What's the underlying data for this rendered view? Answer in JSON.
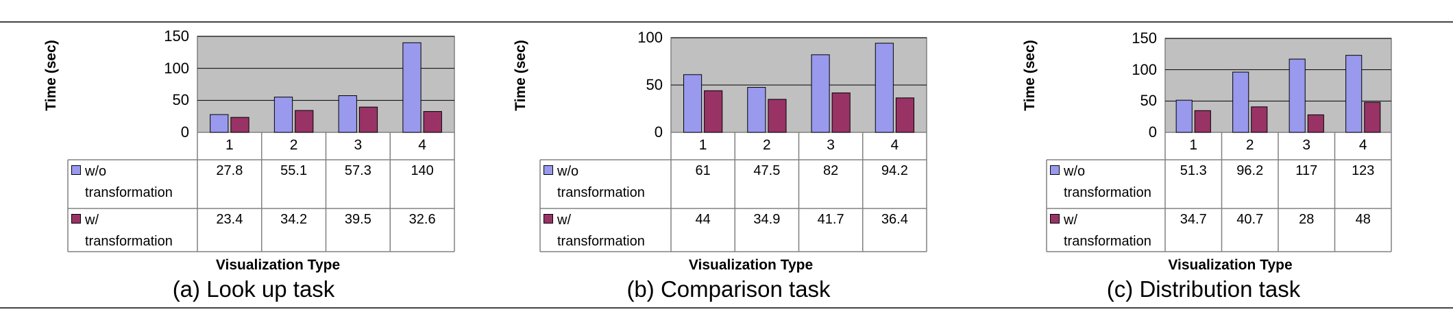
{
  "colors": {
    "series1": "#9999ee",
    "series2": "#993366",
    "plot_bg": "#c0c0c0",
    "grid": "#000000"
  },
  "chart_data": [
    {
      "type": "bar",
      "caption": "(a) Look up task",
      "ylabel": "Time (sec)",
      "xlabel": "Visualization Type",
      "ylim": [
        0,
        150
      ],
      "yticks": [
        "0",
        "50",
        "100",
        "150"
      ],
      "categories": [
        "1",
        "2",
        "3",
        "4"
      ],
      "series": [
        {
          "legend_line1": "w/o",
          "legend_line2": "transformation",
          "values": [
            27.8,
            55.1,
            57.3,
            140
          ],
          "labels": [
            "27.8",
            "55.1",
            "57.3",
            "140"
          ]
        },
        {
          "legend_line1": "w/",
          "legend_line2": "transformation",
          "values": [
            23.4,
            34.2,
            39.5,
            32.6
          ],
          "labels": [
            "23.4",
            "34.2",
            "39.5",
            "32.6"
          ]
        }
      ]
    },
    {
      "type": "bar",
      "caption": "(b) Comparison task",
      "ylabel": "Time (sec)",
      "xlabel": "Visualization Type",
      "ylim": [
        0,
        100
      ],
      "yticks": [
        "0",
        "50",
        "100"
      ],
      "categories": [
        "1",
        "2",
        "3",
        "4"
      ],
      "series": [
        {
          "legend_line1": "w/o",
          "legend_line2": "transformation",
          "values": [
            61,
            47.5,
            82,
            94.2
          ],
          "labels": [
            "61",
            "47.5",
            "82",
            "94.2"
          ]
        },
        {
          "legend_line1": "w/",
          "legend_line2": "transformation",
          "values": [
            44,
            34.9,
            41.7,
            36.4
          ],
          "labels": [
            "44",
            "34.9",
            "41.7",
            "36.4"
          ]
        }
      ]
    },
    {
      "type": "bar",
      "caption": "(c) Distribution task",
      "ylabel": "Time (sec)",
      "xlabel": "Visualization Type",
      "ylim": [
        0,
        150
      ],
      "yticks": [
        "0",
        "50",
        "100",
        "150"
      ],
      "categories": [
        "1",
        "2",
        "3",
        "4"
      ],
      "series": [
        {
          "legend_line1": "w/o",
          "legend_line2": "transformation",
          "values": [
            51.3,
            96.2,
            117,
            123
          ],
          "labels": [
            "51.3",
            "96.2",
            "117",
            "123"
          ]
        },
        {
          "legend_line1": "w/",
          "legend_line2": "transformation",
          "values": [
            34.7,
            40.7,
            28,
            48
          ],
          "labels": [
            "34.7",
            "40.7",
            "28",
            "48"
          ]
        }
      ]
    }
  ]
}
